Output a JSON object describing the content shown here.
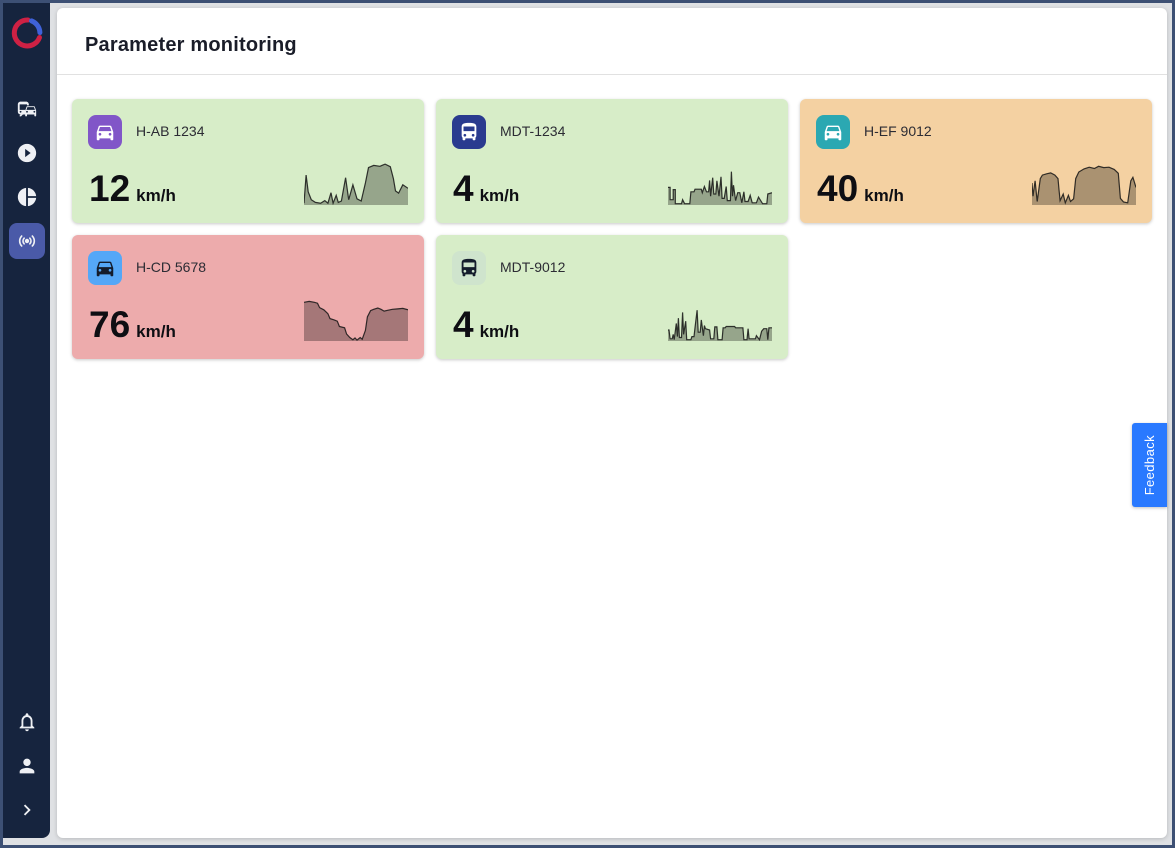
{
  "header": {
    "title": "Parameter monitoring"
  },
  "sidebar": {
    "bg_color": "#16243e",
    "active_bg_color": "#4a5aa8",
    "nav_items": [
      {
        "icon": "commute-icon",
        "active": false
      },
      {
        "icon": "play-circle-icon",
        "active": false
      },
      {
        "icon": "pie-chart-icon",
        "active": false
      },
      {
        "icon": "broadcast-icon",
        "active": true
      }
    ],
    "footer_items": [
      {
        "icon": "bell-icon"
      },
      {
        "icon": "user-icon"
      },
      {
        "icon": "chevron-right-icon"
      }
    ]
  },
  "feedback_button": {
    "label": "Feedback",
    "color": "#2979ff"
  },
  "cards": [
    {
      "label": "H-AB 1234",
      "value": "12",
      "unit": "km/h",
      "icon": "car",
      "colors": {
        "card": "#d7edc8",
        "tile": "#8156c8",
        "glyph": "#ffffff"
      },
      "spark_points": [
        [
          0,
          4
        ],
        [
          2,
          68
        ],
        [
          4,
          30
        ],
        [
          7,
          12
        ],
        [
          11,
          6
        ],
        [
          16,
          4
        ],
        [
          20,
          10
        ],
        [
          23,
          4
        ],
        [
          26,
          28
        ],
        [
          28,
          4
        ],
        [
          31,
          22
        ],
        [
          33,
          6
        ],
        [
          36,
          9
        ],
        [
          40,
          62
        ],
        [
          43,
          12
        ],
        [
          47,
          46
        ],
        [
          51,
          14
        ],
        [
          55,
          9
        ],
        [
          59,
          50
        ],
        [
          62,
          85
        ],
        [
          67,
          90
        ],
        [
          73,
          88
        ],
        [
          78,
          93
        ],
        [
          83,
          87
        ],
        [
          86,
          60
        ],
        [
          88,
          32
        ],
        [
          91,
          27
        ],
        [
          95,
          46
        ],
        [
          100,
          38
        ]
      ]
    },
    {
      "label": "MDT-1234",
      "value": "4",
      "unit": "km/h",
      "icon": "bus",
      "colors": {
        "card": "#d7edc8",
        "tile": "#2a3b8f",
        "glyph": "#ffffff"
      },
      "spark_points": [
        [
          0,
          40
        ],
        [
          2,
          40
        ],
        [
          2,
          12
        ],
        [
          5,
          12
        ],
        [
          5,
          35
        ],
        [
          7,
          35
        ],
        [
          7,
          3
        ],
        [
          13,
          3
        ],
        [
          14,
          12
        ],
        [
          16,
          3
        ],
        [
          21,
          3
        ],
        [
          22,
          30
        ],
        [
          25,
          30
        ],
        [
          26,
          36
        ],
        [
          32,
          36
        ],
        [
          33,
          28
        ],
        [
          35,
          42
        ],
        [
          37,
          30
        ],
        [
          39,
          30
        ],
        [
          40,
          56
        ],
        [
          41,
          20
        ],
        [
          43,
          62
        ],
        [
          44,
          25
        ],
        [
          46,
          25
        ],
        [
          47,
          55
        ],
        [
          49,
          20
        ],
        [
          51,
          64
        ],
        [
          52,
          15
        ],
        [
          54,
          15
        ],
        [
          56,
          42
        ],
        [
          57,
          10
        ],
        [
          60,
          10
        ],
        [
          61,
          76
        ],
        [
          62,
          20
        ],
        [
          63,
          45
        ],
        [
          65,
          10
        ],
        [
          67,
          28
        ],
        [
          69,
          28
        ],
        [
          71,
          5
        ],
        [
          73,
          30
        ],
        [
          74,
          8
        ],
        [
          77,
          8
        ],
        [
          79,
          22
        ],
        [
          81,
          5
        ],
        [
          85,
          5
        ],
        [
          87,
          18
        ],
        [
          91,
          3
        ],
        [
          95,
          3
        ],
        [
          96,
          25
        ],
        [
          100,
          28
        ]
      ]
    },
    {
      "label": "H-EF 9012",
      "value": "40",
      "unit": "km/h",
      "icon": "car",
      "colors": {
        "card": "#f4d1a2",
        "tile": "#2ba8b2",
        "glyph": "#ffffff"
      },
      "spark_points": [
        [
          0,
          50
        ],
        [
          1,
          20
        ],
        [
          3,
          55
        ],
        [
          5,
          8
        ],
        [
          8,
          60
        ],
        [
          10,
          68
        ],
        [
          14,
          71
        ],
        [
          18,
          73
        ],
        [
          22,
          68
        ],
        [
          25,
          60
        ],
        [
          26,
          35
        ],
        [
          27,
          10
        ],
        [
          30,
          25
        ],
        [
          32,
          5
        ],
        [
          35,
          22
        ],
        [
          37,
          8
        ],
        [
          40,
          14
        ],
        [
          42,
          60
        ],
        [
          45,
          75
        ],
        [
          50,
          82
        ],
        [
          55,
          86
        ],
        [
          60,
          83
        ],
        [
          64,
          88
        ],
        [
          69,
          85
        ],
        [
          74,
          86
        ],
        [
          79,
          81
        ],
        [
          83,
          72
        ],
        [
          85,
          15
        ],
        [
          88,
          7
        ],
        [
          92,
          5
        ],
        [
          95,
          55
        ],
        [
          97,
          63
        ],
        [
          100,
          40
        ]
      ]
    },
    {
      "label": "H-CD 5678",
      "value": "76",
      "unit": "km/h",
      "icon": "car",
      "colors": {
        "card": "#edabac",
        "tile": "#55a7f7",
        "glyph": "#141c2c"
      },
      "spark_points": [
        [
          0,
          88
        ],
        [
          5,
          90
        ],
        [
          10,
          88
        ],
        [
          13,
          86
        ],
        [
          15,
          76
        ],
        [
          19,
          71
        ],
        [
          23,
          62
        ],
        [
          25,
          51
        ],
        [
          29,
          48
        ],
        [
          32,
          45
        ],
        [
          34,
          33
        ],
        [
          39,
          30
        ],
        [
          41,
          16
        ],
        [
          44,
          8
        ],
        [
          47,
          3
        ],
        [
          49,
          7
        ],
        [
          51,
          2
        ],
        [
          54,
          8
        ],
        [
          56,
          4
        ],
        [
          59,
          24
        ],
        [
          61,
          55
        ],
        [
          64,
          69
        ],
        [
          67,
          72
        ],
        [
          71,
          75
        ],
        [
          74,
          72
        ],
        [
          77,
          68
        ],
        [
          81,
          70
        ],
        [
          85,
          72
        ],
        [
          90,
          73
        ],
        [
          95,
          74
        ],
        [
          100,
          71
        ]
      ]
    },
    {
      "label": "MDT-9012",
      "value": "4",
      "unit": "km/h",
      "icon": "bus",
      "colors": {
        "card": "#d7edc8",
        "tile": "#cfe4cd",
        "glyph": "#141c2c"
      },
      "spark_points": [
        [
          0,
          25
        ],
        [
          1,
          25
        ],
        [
          2,
          5
        ],
        [
          4,
          5
        ],
        [
          5,
          15
        ],
        [
          6,
          3
        ],
        [
          8,
          40
        ],
        [
          9,
          10
        ],
        [
          10,
          52
        ],
        [
          11,
          8
        ],
        [
          13,
          8
        ],
        [
          14,
          65
        ],
        [
          15,
          15
        ],
        [
          17,
          45
        ],
        [
          18,
          3
        ],
        [
          22,
          3
        ],
        [
          23,
          10
        ],
        [
          25,
          10
        ],
        [
          26,
          30
        ],
        [
          28,
          70
        ],
        [
          29,
          20
        ],
        [
          31,
          20
        ],
        [
          32,
          48
        ],
        [
          34,
          12
        ],
        [
          35,
          35
        ],
        [
          36,
          28
        ],
        [
          40,
          25
        ],
        [
          41,
          5
        ],
        [
          44,
          5
        ],
        [
          45,
          32
        ],
        [
          47,
          32
        ],
        [
          48,
          3
        ],
        [
          52,
          3
        ],
        [
          53,
          30
        ],
        [
          55,
          30
        ],
        [
          56,
          33
        ],
        [
          64,
          33
        ],
        [
          65,
          30
        ],
        [
          72,
          30
        ],
        [
          73,
          3
        ],
        [
          76,
          3
        ],
        [
          77,
          28
        ],
        [
          78,
          5
        ],
        [
          84,
          5
        ],
        [
          85,
          12
        ],
        [
          88,
          3
        ],
        [
          90,
          22
        ],
        [
          92,
          28
        ],
        [
          95,
          28
        ],
        [
          96,
          3
        ],
        [
          97,
          30
        ],
        [
          100,
          30
        ]
      ]
    }
  ],
  "spark_style": {
    "fill": "rgba(0,0,0,0.30)",
    "stroke": "rgba(20,20,20,0.85)"
  }
}
